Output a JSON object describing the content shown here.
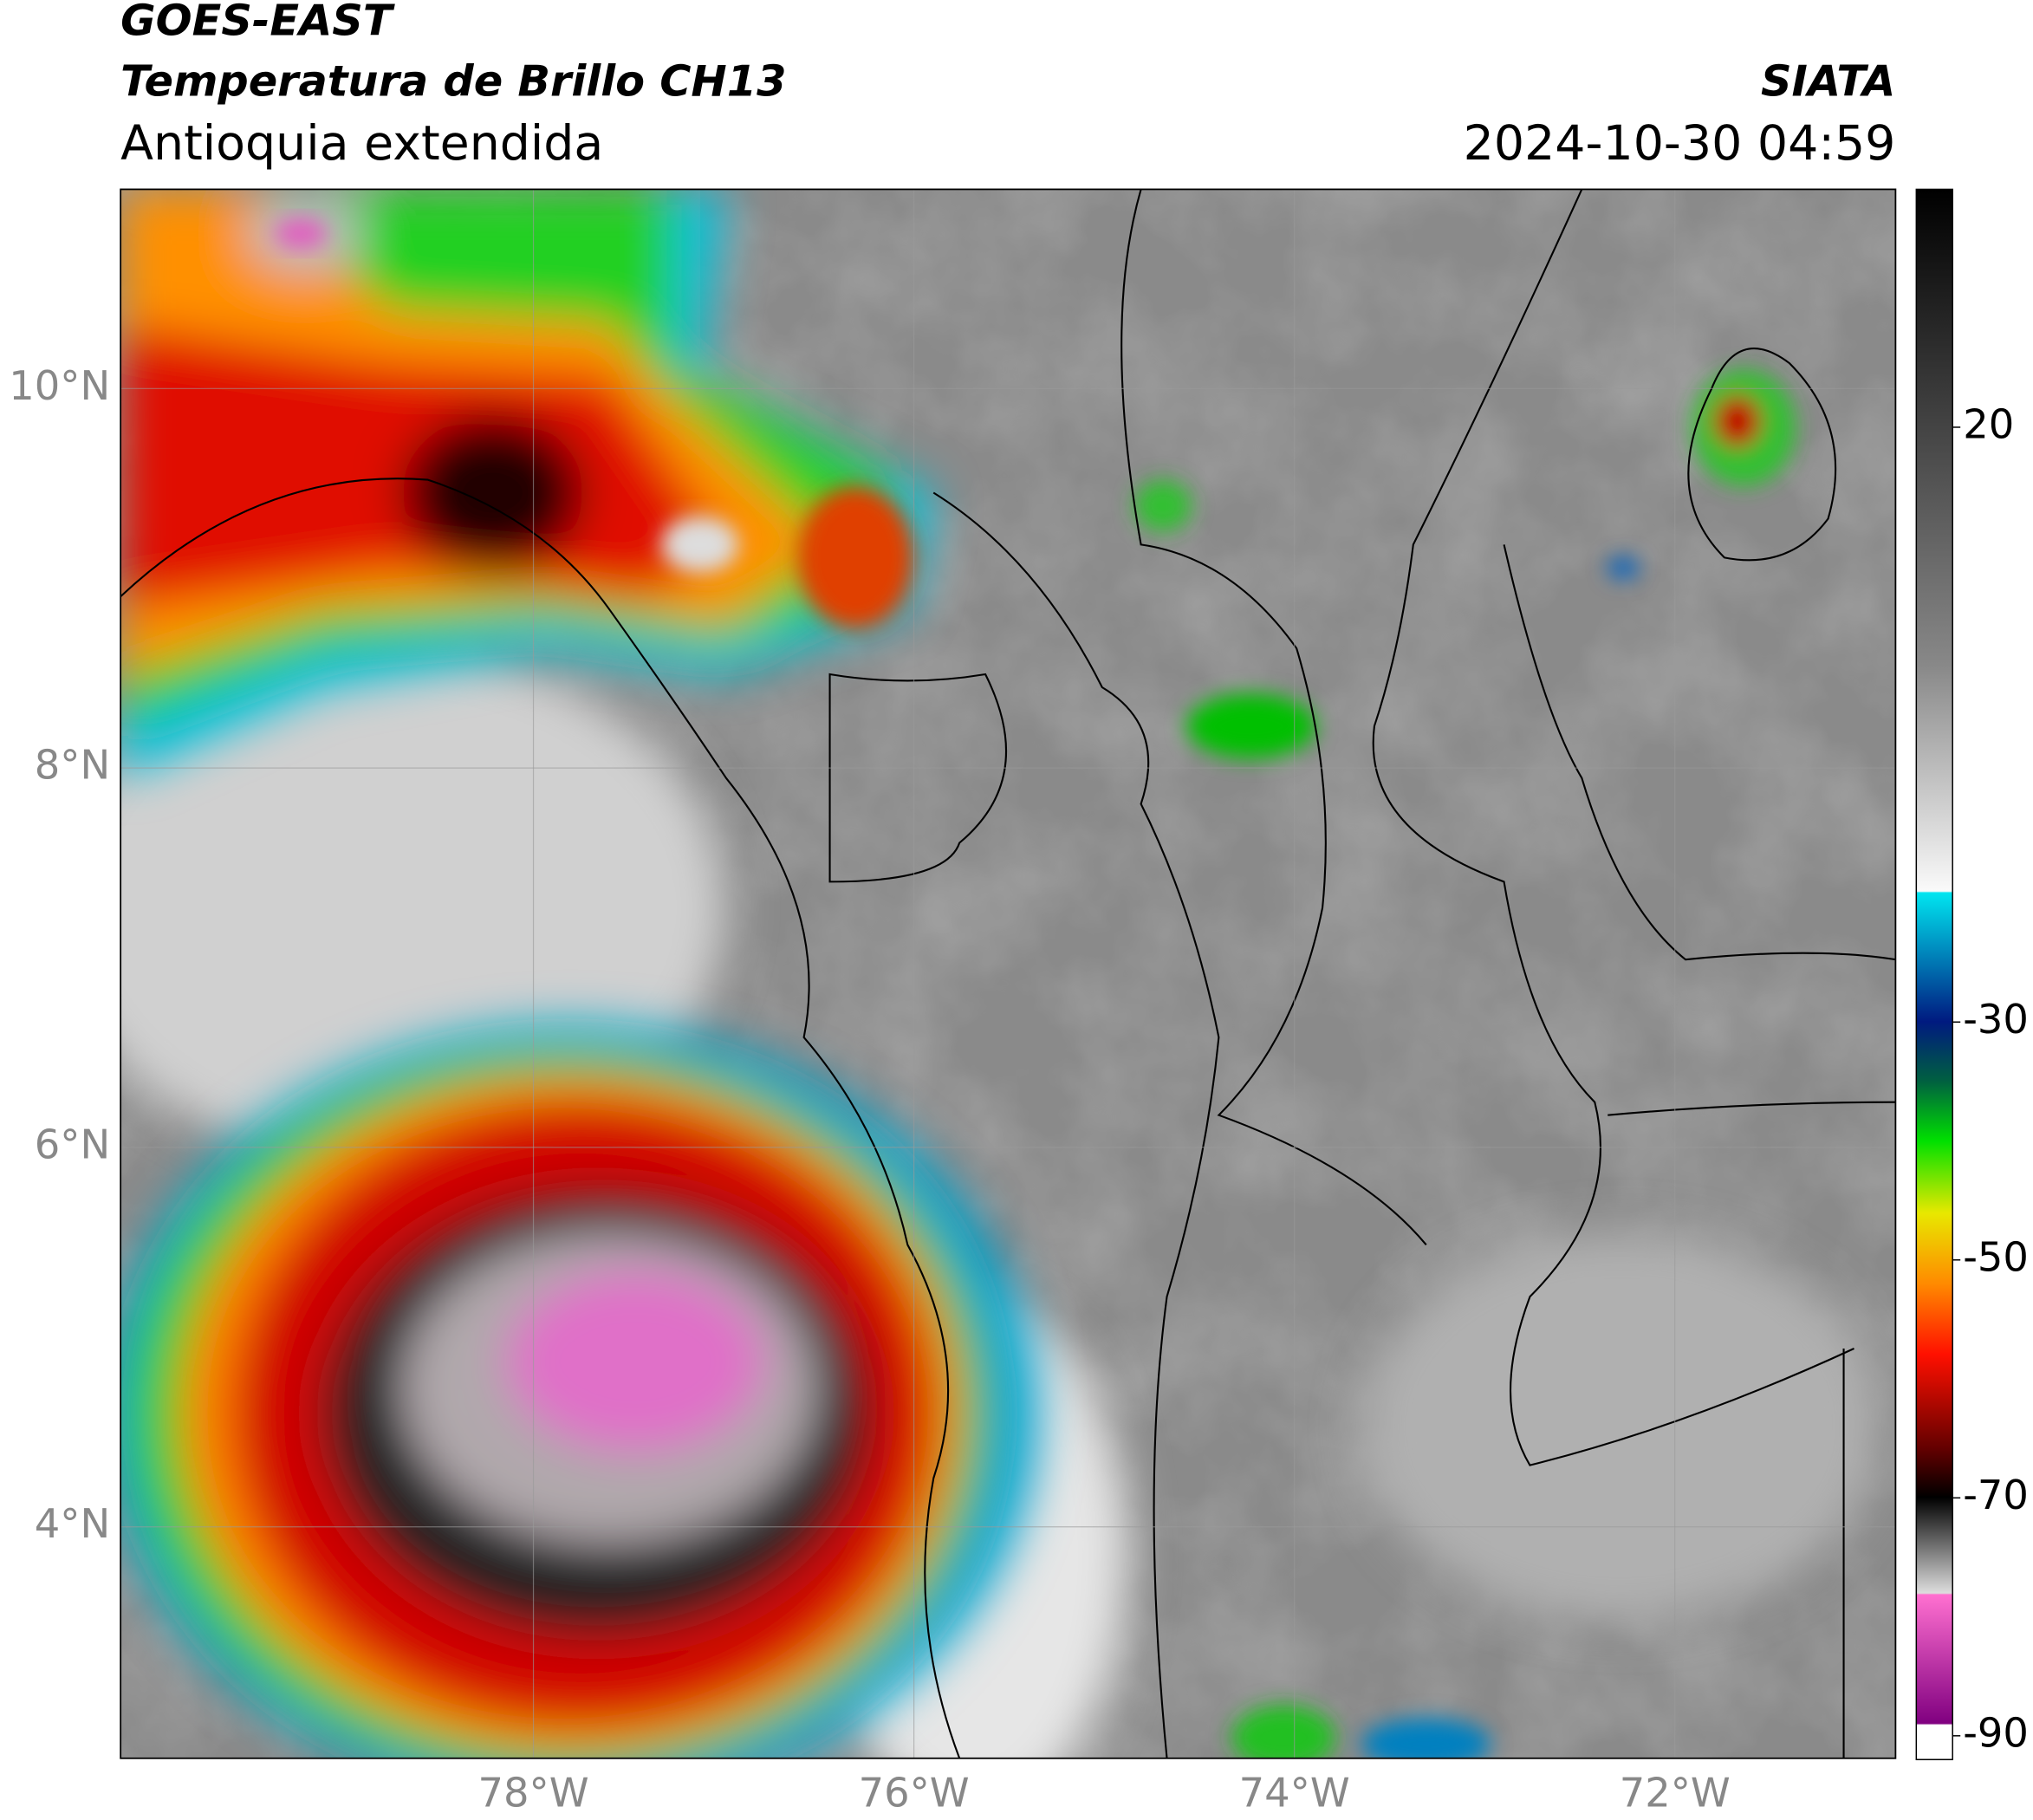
{
  "header": {
    "title": "GOES-EAST",
    "subtitle": "Temperatura de Brillo CH13",
    "region": "Antioquia extendida",
    "source": "SIATA",
    "datetime": "2024-10-30 04:59"
  },
  "map": {
    "xlim": [
      -80.17,
      -70.84
    ],
    "ylim": [
      2.78,
      11.05
    ],
    "xticks": [
      {
        "value": -78,
        "label": "78°W"
      },
      {
        "value": -76,
        "label": "76°W"
      },
      {
        "value": -74,
        "label": "74°W"
      },
      {
        "value": -72,
        "label": "72°W"
      }
    ],
    "yticks": [
      {
        "value": 4,
        "label": "4°N"
      },
      {
        "value": 6,
        "label": "6°N"
      },
      {
        "value": 8,
        "label": "8°N"
      },
      {
        "value": 10,
        "label": "10°N"
      }
    ]
  },
  "colorbar": {
    "lim": [
      -92,
      40
    ],
    "ticks": [
      20,
      -30,
      -50,
      -70,
      -90
    ]
  }
}
